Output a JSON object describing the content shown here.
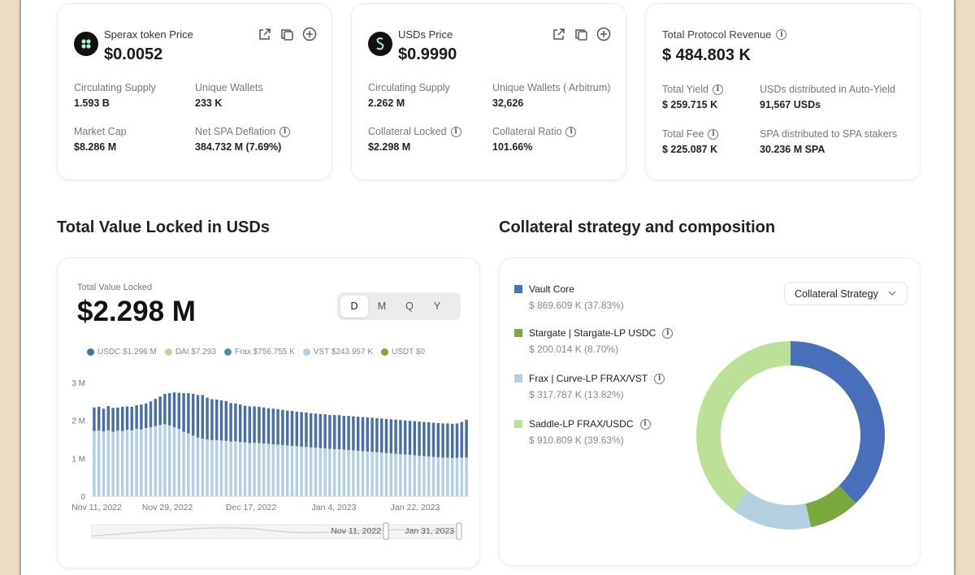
{
  "sperax": {
    "label": "Sperax token Price",
    "price": "$0.0052",
    "stats": [
      {
        "label": "Circulating Supply",
        "value": "1.593 B"
      },
      {
        "label": "Unique Wallets",
        "value": "233 K"
      },
      {
        "label": "Market Cap",
        "value": "$8.286 M"
      },
      {
        "label": "Net SPA Deflation",
        "value": "384.732 M (7.69%)"
      }
    ]
  },
  "usds": {
    "label": "USDs Price",
    "price": "$0.9990",
    "stats": [
      {
        "label": "Circulating Supply",
        "value": "2.262 M"
      },
      {
        "label": "Unique Wallets ( Arbitrum)",
        "value": "32,626"
      },
      {
        "label": "Collateral Locked",
        "value": "$2.298 M"
      },
      {
        "label": "Collateral Ratio",
        "value": "101.66%"
      }
    ]
  },
  "revenue": {
    "label": "Total Protocol Revenue",
    "value": "$ 484.803 K",
    "stats": [
      {
        "label": "Total Yield",
        "value": "$ 259.715 K"
      },
      {
        "label": "USDs distributed in Auto-Yield",
        "value": "91,567 USDs"
      },
      {
        "label": "Total Fee",
        "value": "$ 225.087 K"
      },
      {
        "label": "SPA distributed to SPA stakers",
        "value": "30.236 M SPA"
      }
    ]
  },
  "tvl": {
    "section_title": "Total Value Locked in USDs",
    "label": "Total Value Locked",
    "value": "$2.298 M",
    "periods": [
      "D",
      "M",
      "Q",
      "Y"
    ],
    "active_period": "D",
    "legend": [
      {
        "text": "USDC $1.296 M",
        "color": "#4a6fa5"
      },
      {
        "text": "DAI $7.293",
        "color": "#b7dc8e"
      },
      {
        "text": "Frax $756.755 K",
        "color": "#5b8aa0"
      },
      {
        "text": "VST $243.957 K",
        "color": "#b4d0e0"
      },
      {
        "text": "USDT $0",
        "color": "#7caa3c"
      }
    ],
    "range_start": "Nov 11, 2022",
    "range_end": "Jan 31, 2023"
  },
  "chart_data": {
    "type": "bar",
    "stacked": true,
    "y_ticks": [
      "3 M",
      "2 M",
      "1 M",
      "0"
    ],
    "ylim": [
      0,
      3000000
    ],
    "x_ticks": [
      "Nov 11, 2022",
      "Nov 29, 2022",
      "Dec 17, 2022",
      "Jan 4, 2023",
      "Jan 22, 2023"
    ],
    "x_start": "2022-11-11",
    "x_end": "2023-01-31",
    "series": [
      {
        "name": "Frax",
        "color": "#b4cfe0",
        "values": [
          1.72,
          1.73,
          1.71,
          1.74,
          1.7,
          1.73,
          1.72,
          1.75,
          1.74,
          1.78,
          1.76,
          1.8,
          1.82,
          1.85,
          1.88,
          1.9,
          1.87,
          1.82,
          1.78,
          1.7,
          1.66,
          1.6,
          1.55,
          1.52,
          1.5,
          1.48,
          1.48,
          1.47,
          1.46,
          1.44,
          1.45,
          1.43,
          1.42,
          1.4,
          1.41,
          1.4,
          1.39,
          1.38,
          1.37,
          1.36,
          1.35,
          1.34,
          1.33,
          1.32,
          1.3,
          1.3,
          1.29,
          1.28,
          1.27,
          1.26,
          1.25,
          1.24,
          1.24,
          1.23,
          1.22,
          1.21,
          1.2,
          1.19,
          1.18,
          1.17,
          1.16,
          1.15,
          1.14,
          1.13,
          1.12,
          1.11,
          1.1,
          1.09,
          1.08,
          1.07,
          1.06,
          1.05,
          1.04,
          1.03,
          1.02,
          1.02,
          1.01,
          1.01,
          1.02,
          1.02
        ]
      },
      {
        "name": "USDC",
        "color": "#4a6fa5",
        "values": [
          0.62,
          0.63,
          0.6,
          0.64,
          0.63,
          0.61,
          0.64,
          0.62,
          0.62,
          0.62,
          0.66,
          0.65,
          0.68,
          0.72,
          0.75,
          0.8,
          0.85,
          0.92,
          0.95,
          1.02,
          1.06,
          1.1,
          1.12,
          1.15,
          1.1,
          1.08,
          1.07,
          1.06,
          1.05,
          1.02,
          1.0,
          0.99,
          0.97,
          0.97,
          0.96,
          0.96,
          0.95,
          0.94,
          0.94,
          0.94,
          0.93,
          0.92,
          0.92,
          0.91,
          0.92,
          0.91,
          0.9,
          0.9,
          0.9,
          0.9,
          0.89,
          0.9,
          0.9,
          0.89,
          0.9,
          0.9,
          0.9,
          0.9,
          0.9,
          0.9,
          0.9,
          0.9,
          0.9,
          0.9,
          0.9,
          0.9,
          0.9,
          0.9,
          0.9,
          0.9,
          0.9,
          0.9,
          0.9,
          0.9,
          0.9,
          0.9,
          0.9,
          0.91,
          0.94,
          1.0
        ]
      }
    ]
  },
  "composition": {
    "section_title": "Collateral strategy and composition",
    "dropdown_label": "Collateral Strategy",
    "items": [
      {
        "name": "Vault Core",
        "amount": "$ 869.609 K (37.83%)",
        "color": "#4a6fba",
        "pct": 37.83,
        "info": false
      },
      {
        "name": "Stargate | Stargate-LP USDC",
        "amount": "$ 200.014 K (8.70%)",
        "color": "#7ba83c",
        "pct": 8.7,
        "info": true
      },
      {
        "name": "Frax | Curve-LP FRAX/VST",
        "amount": "$ 317.787 K (13.82%)",
        "color": "#b4d0e0",
        "pct": 13.82,
        "info": true
      },
      {
        "name": "Saddle-LP FRAX/USDC",
        "amount": "$ 910.809 K (39.63%)",
        "color": "#bde099",
        "pct": 39.63,
        "info": true
      }
    ]
  }
}
